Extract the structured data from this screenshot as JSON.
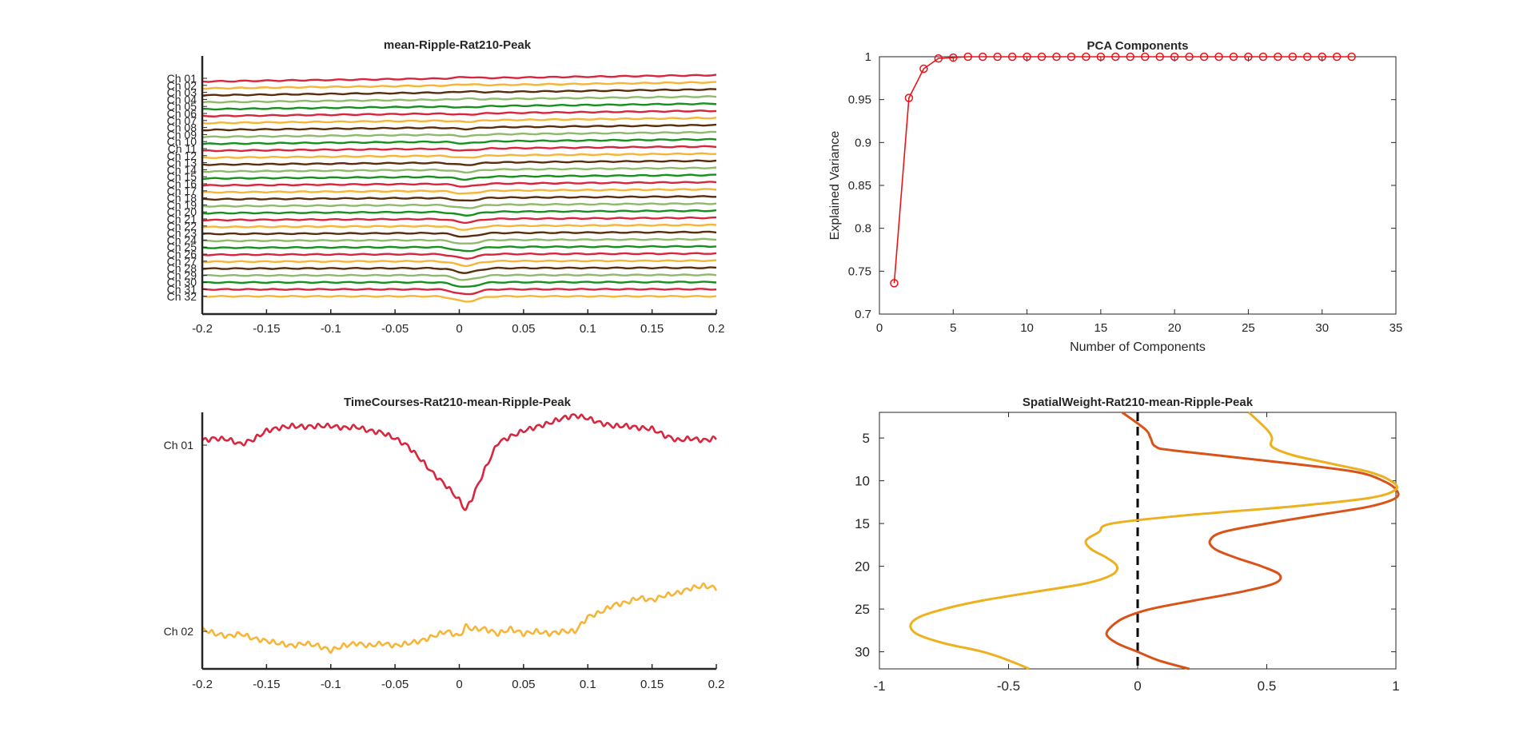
{
  "figure": {
    "panels": {
      "top_left": {
        "title": "mean-Ripple-Rat210-Peak",
        "xticks": [
          "-0.2",
          "-0.15",
          "-0.1",
          "-0.05",
          "0",
          "0.05",
          "0.1",
          "0.15",
          "0.2"
        ],
        "channels": [
          "Ch 01",
          "Ch 02",
          "Ch 03",
          "Ch 04",
          "Ch 05",
          "Ch 06",
          "Ch 07",
          "Ch 08",
          "Ch 09",
          "Ch 10",
          "Ch 11",
          "Ch 12",
          "Ch 13",
          "Ch 14",
          "Ch 15",
          "Ch 16",
          "Ch 17",
          "Ch 18",
          "Ch 19",
          "Ch 20",
          "Ch 21",
          "Ch 22",
          "Ch 23",
          "Ch 24",
          "Ch 25",
          "Ch 26",
          "Ch 27",
          "Ch 28",
          "Ch 29",
          "Ch 30",
          "Ch 31",
          "Ch 32"
        ]
      },
      "top_right": {
        "title": "PCA Components",
        "xlabel": "Number of Components",
        "ylabel": "Explained Variance",
        "xticks": [
          "0",
          "5",
          "10",
          "15",
          "20",
          "25",
          "30",
          "35"
        ],
        "yticks": [
          "0.7",
          "0.75",
          "0.8",
          "0.85",
          "0.9",
          "0.95",
          "1"
        ]
      },
      "bottom_left": {
        "title": "TimeCourses-Rat210-mean-Ripple-Peak",
        "xticks": [
          "-0.2",
          "-0.15",
          "-0.1",
          "-0.05",
          "0",
          "0.05",
          "0.1",
          "0.15",
          "0.2"
        ],
        "channels": [
          "Ch 01",
          "Ch 02"
        ]
      },
      "bottom_right": {
        "title": "SpatialWeight-Rat210-mean-Ripple-Peak",
        "xticks": [
          "-1",
          "-0.5",
          "0",
          "0.5",
          "1"
        ],
        "yticks": [
          "5",
          "10",
          "15",
          "20",
          "25",
          "30"
        ]
      }
    }
  },
  "chart_data": [
    {
      "type": "line",
      "title": "mean-Ripple-Rat210-Peak",
      "xlim": [
        -0.2,
        0.2
      ],
      "n_channels": 32,
      "palette": [
        "#d7263d",
        "#f7b538",
        "#5a2d0c",
        "#8fb96b",
        "#17911e"
      ],
      "x": [
        -0.2,
        -0.15,
        -0.1,
        -0.05,
        -0.02,
        0,
        0.005,
        0.02,
        0.05,
        0.1,
        0.15,
        0.2
      ],
      "ripple_dip": {
        "x": 0.005,
        "depth_top": 0.0,
        "depth_bottom": 1.0
      }
    },
    {
      "type": "line",
      "title": "PCA Components",
      "xlabel": "Number of Components",
      "ylabel": "Explained Variance",
      "xlim": [
        0,
        35
      ],
      "ylim": [
        0.7,
        1
      ],
      "color": "#e8141a",
      "marker": "circle",
      "x": [
        1,
        2,
        3,
        4,
        5,
        6,
        7,
        8,
        9,
        10,
        11,
        12,
        13,
        14,
        15,
        16,
        17,
        18,
        19,
        20,
        21,
        22,
        23,
        24,
        25,
        26,
        27,
        28,
        29,
        30,
        31,
        32
      ],
      "y": [
        0.736,
        0.952,
        0.986,
        0.998,
        0.999,
        1,
        1,
        1,
        1,
        1,
        1,
        1,
        1,
        1,
        1,
        1,
        1,
        1,
        1,
        1,
        1,
        1,
        1,
        1,
        1,
        1,
        1,
        1,
        1,
        1,
        1,
        1
      ]
    },
    {
      "type": "line",
      "title": "TimeCourses-Rat210-mean-Ripple-Peak",
      "xlim": [
        -0.2,
        0.2
      ],
      "series": [
        {
          "color": "#d7263d",
          "x": [
            -0.2,
            -0.19,
            -0.18,
            -0.17,
            -0.16,
            -0.15,
            -0.14,
            -0.13,
            -0.12,
            -0.11,
            -0.1,
            -0.09,
            -0.08,
            -0.07,
            -0.06,
            -0.05,
            -0.04,
            -0.03,
            -0.02,
            -0.01,
            0,
            0.005,
            0.01,
            0.02,
            0.03,
            0.04,
            0.05,
            0.06,
            0.07,
            0.08,
            0.09,
            0.1,
            0.11,
            0.12,
            0.13,
            0.14,
            0.15,
            0.16,
            0.17,
            0.18,
            0.19,
            0.2
          ],
          "y": [
            0.1,
            0.14,
            0.12,
            0.02,
            0.12,
            0.3,
            0.36,
            0.4,
            0.38,
            0.4,
            0.4,
            0.36,
            0.38,
            0.3,
            0.26,
            0.14,
            -0.02,
            -0.3,
            -0.6,
            -0.85,
            -1.15,
            -1.35,
            -1.1,
            -0.5,
            0.05,
            0.18,
            0.3,
            0.38,
            0.46,
            0.56,
            0.62,
            0.56,
            0.46,
            0.4,
            0.4,
            0.36,
            0.34,
            0.2,
            0.1,
            0.14,
            0.1,
            0.14
          ]
        },
        {
          "color": "#f7b538",
          "x": [
            -0.2,
            -0.19,
            -0.18,
            -0.17,
            -0.16,
            -0.15,
            -0.14,
            -0.13,
            -0.12,
            -0.11,
            -0.1,
            -0.09,
            -0.08,
            -0.07,
            -0.06,
            -0.05,
            -0.04,
            -0.03,
            -0.02,
            -0.01,
            0,
            0.005,
            0.01,
            0.02,
            0.03,
            0.04,
            0.05,
            0.06,
            0.07,
            0.08,
            0.09,
            0.1,
            0.11,
            0.12,
            0.13,
            0.14,
            0.15,
            0.16,
            0.17,
            0.18,
            0.19,
            0.2
          ],
          "y": [
            0.05,
            -0.05,
            -0.1,
            -0.05,
            -0.15,
            -0.2,
            -0.25,
            -0.3,
            -0.25,
            -0.3,
            -0.4,
            -0.3,
            -0.25,
            -0.3,
            -0.25,
            -0.3,
            -0.25,
            -0.2,
            -0.1,
            0.0,
            -0.1,
            0.1,
            0.05,
            0.05,
            -0.05,
            0.05,
            -0.05,
            0.0,
            -0.05,
            0.0,
            0.0,
            0.3,
            0.4,
            0.55,
            0.6,
            0.7,
            0.65,
            0.75,
            0.8,
            0.9,
            0.95,
            0.9
          ]
        }
      ]
    },
    {
      "type": "line",
      "title": "SpatialWeight-Rat210-mean-Ripple-Peak",
      "xlim": [
        -1,
        1
      ],
      "ylim": [
        32,
        2
      ],
      "reference_line": {
        "x": 0,
        "style": "dashed"
      },
      "series": [
        {
          "color": "#d95319",
          "depth": [
            2,
            4,
            5,
            6,
            6.5,
            8,
            9,
            10,
            11,
            12,
            13,
            14,
            15,
            16,
            17,
            18,
            19,
            20,
            21,
            22,
            23,
            24,
            25,
            26,
            27,
            28,
            29,
            30,
            31,
            32
          ],
          "weight": [
            -0.06,
            0.03,
            0.05,
            0.07,
            0.15,
            0.6,
            0.85,
            0.95,
            1.0,
            1.0,
            0.9,
            0.7,
            0.5,
            0.33,
            0.28,
            0.3,
            0.38,
            0.48,
            0.55,
            0.53,
            0.4,
            0.22,
            0.05,
            -0.05,
            -0.1,
            -0.12,
            -0.08,
            0.0,
            0.08,
            0.2
          ]
        },
        {
          "color": "#edb120",
          "depth": [
            2,
            4,
            5,
            6,
            7,
            8,
            9,
            10,
            11,
            12,
            13,
            14,
            15,
            16,
            17,
            18,
            19,
            20,
            21,
            22,
            23,
            24,
            25,
            26,
            27,
            28,
            29,
            30,
            31,
            32
          ],
          "weight": [
            0.43,
            0.5,
            0.52,
            0.52,
            0.6,
            0.75,
            0.9,
            0.98,
            1.0,
            0.9,
            0.6,
            0.2,
            -0.1,
            -0.15,
            -0.2,
            -0.18,
            -0.12,
            -0.08,
            -0.1,
            -0.2,
            -0.4,
            -0.6,
            -0.75,
            -0.85,
            -0.88,
            -0.85,
            -0.75,
            -0.6,
            -0.5,
            -0.42
          ]
        }
      ]
    }
  ]
}
